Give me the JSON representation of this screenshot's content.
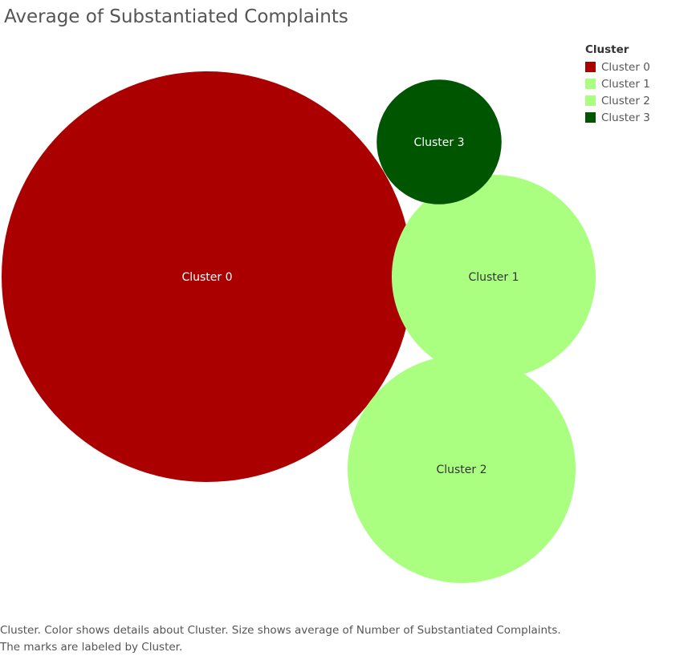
{
  "chart_data": {
    "type": "packed-bubble",
    "title": "Average of Substantiated Complaints",
    "legend_title": "Cluster",
    "legend_position": "top-right",
    "categories": [
      "Cluster 0",
      "Cluster 1",
      "Cluster 2",
      "Cluster 3"
    ],
    "values": [
      6.5,
      1.6,
      2.0,
      0.6
    ],
    "colors": [
      "#aa0000",
      "#aaff80",
      "#aaff80",
      "#005500"
    ],
    "label_colors": [
      "#ffffff",
      "#333333",
      "#333333",
      "#ffffff"
    ],
    "size_measure": "average of Number of Substantiated Complaints"
  },
  "caption": "Cluster.  Color shows details about Cluster.  Size shows average of Number of Substantiated Complaints.  The marks are labeled by Cluster."
}
